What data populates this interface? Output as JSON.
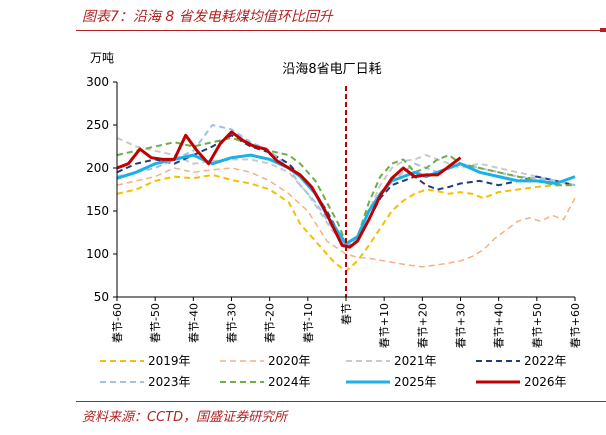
{
  "figure": {
    "title": "图表7：沿海 8 省发电耗煤均值环比回升",
    "source": "资料来源：CCTD，国盛证券研究所"
  },
  "chart_data": {
    "type": "line",
    "title": "沿海8省电厂日耗",
    "ylabel": "万吨",
    "xlabel": "",
    "ylim": [
      50,
      300
    ],
    "xlim": [
      -60,
      60
    ],
    "y_ticks": [
      "300",
      "250",
      "200",
      "150",
      "100",
      "50"
    ],
    "x_ticks": [
      {
        "x": -60,
        "label": "春节-60"
      },
      {
        "x": -50,
        "label": "春节-50"
      },
      {
        "x": -40,
        "label": "春节-40"
      },
      {
        "x": -30,
        "label": "春节-30"
      },
      {
        "x": -20,
        "label": "春节-20"
      },
      {
        "x": -10,
        "label": "春节-10"
      },
      {
        "x": 0,
        "label": "春节"
      },
      {
        "x": 10,
        "label": "春节+10"
      },
      {
        "x": 20,
        "label": "春节+20"
      },
      {
        "x": 30,
        "label": "春节+30"
      },
      {
        "x": 40,
        "label": "春节+40"
      },
      {
        "x": 50,
        "label": "春节+50"
      },
      {
        "x": 60,
        "label": "春节+60"
      }
    ],
    "reference_line_x": 0,
    "grid": false,
    "legend_position": "bottom",
    "series": [
      {
        "name": "2019年",
        "color": "#f5c000",
        "dash": "dashed",
        "width": 2,
        "x": [
          -60,
          -55,
          -50,
          -45,
          -40,
          -35,
          -30,
          -25,
          -20,
          -15,
          -12,
          -9,
          -6,
          -3,
          0,
          3,
          6,
          9,
          12,
          15,
          18,
          21,
          24,
          27,
          30,
          33,
          36,
          40,
          45,
          50,
          55,
          60
        ],
        "y": [
          170,
          175,
          185,
          190,
          188,
          192,
          186,
          182,
          175,
          160,
          135,
          120,
          105,
          90,
          80,
          92,
          110,
          130,
          150,
          162,
          170,
          175,
          173,
          170,
          172,
          170,
          165,
          172,
          175,
          178,
          180,
          182
        ]
      },
      {
        "name": "2020年",
        "color": "#f4b183",
        "dash": "dashed",
        "width": 1.5,
        "x": [
          -60,
          -55,
          -50,
          -45,
          -40,
          -35,
          -30,
          -25,
          -20,
          -15,
          -10,
          -5,
          0,
          3,
          6,
          10,
          15,
          20,
          25,
          30,
          33,
          36,
          39,
          42,
          45,
          48,
          51,
          54,
          57,
          60
        ],
        "y": [
          180,
          185,
          190,
          200,
          195,
          198,
          200,
          195,
          185,
          170,
          150,
          115,
          100,
          96,
          95,
          92,
          88,
          85,
          88,
          92,
          97,
          105,
          118,
          128,
          138,
          142,
          138,
          145,
          140,
          165
        ]
      },
      {
        "name": "2021年",
        "color": "#c9c9c9",
        "dash": "dashed",
        "width": 2,
        "x": [
          -60,
          -55,
          -50,
          -45,
          -40,
          -35,
          -30,
          -25,
          -20,
          -15,
          -10,
          -7,
          -4,
          -2,
          0,
          3,
          6,
          9,
          12,
          15,
          18,
          21,
          24,
          27,
          30,
          35,
          40,
          45,
          50,
          55,
          60
        ],
        "y": [
          235,
          225,
          220,
          215,
          205,
          208,
          210,
          210,
          205,
          195,
          170,
          150,
          130,
          118,
          110,
          118,
          150,
          180,
          200,
          208,
          210,
          215,
          210,
          205,
          200,
          205,
          200,
          195,
          190,
          185,
          180
        ]
      },
      {
        "name": "2022年",
        "color": "#1f3d7a",
        "dash": "dashed",
        "width": 2,
        "x": [
          -60,
          -55,
          -50,
          -45,
          -40,
          -35,
          -30,
          -25,
          -20,
          -15,
          -12,
          -8,
          -5,
          -2,
          0,
          3,
          6,
          9,
          12,
          15,
          18,
          21,
          24,
          27,
          30,
          35,
          40,
          45,
          50,
          55,
          60
        ],
        "y": [
          195,
          205,
          210,
          205,
          215,
          225,
          238,
          225,
          218,
          205,
          190,
          170,
          150,
          125,
          108,
          115,
          140,
          165,
          180,
          185,
          190,
          180,
          175,
          178,
          182,
          185,
          180,
          185,
          190,
          185,
          180
        ]
      },
      {
        "name": "2023年",
        "color": "#9dc3e6",
        "dash": "dashed",
        "width": 2,
        "x": [
          -60,
          -55,
          -50,
          -45,
          -40,
          -35,
          -30,
          -25,
          -20,
          -15,
          -12,
          -8,
          -5,
          -2,
          0,
          3,
          6,
          9,
          12,
          15,
          18,
          21,
          24,
          27,
          30,
          35,
          40,
          45,
          50,
          55,
          60
        ],
        "y": [
          190,
          195,
          200,
          210,
          220,
          250,
          245,
          230,
          220,
          200,
          180,
          160,
          140,
          120,
          108,
          120,
          150,
          170,
          185,
          195,
          205,
          200,
          195,
          200,
          205,
          200,
          195,
          190,
          188,
          185,
          180
        ]
      },
      {
        "name": "2024年",
        "color": "#70ad47",
        "dash": "dashed",
        "width": 2,
        "x": [
          -60,
          -55,
          -50,
          -45,
          -40,
          -35,
          -30,
          -25,
          -20,
          -15,
          -12,
          -8,
          -5,
          -2,
          0,
          3,
          6,
          9,
          12,
          15,
          18,
          21,
          24,
          27,
          30,
          35,
          40,
          45,
          50,
          55,
          60
        ],
        "y": [
          215,
          220,
          225,
          230,
          225,
          230,
          235,
          228,
          220,
          215,
          205,
          185,
          160,
          135,
          112,
          120,
          160,
          190,
          205,
          210,
          195,
          200,
          210,
          215,
          205,
          200,
          195,
          190,
          185,
          180,
          180
        ]
      },
      {
        "name": "2025年",
        "color": "#1cb0e8",
        "dash": "solid",
        "width": 3,
        "x": [
          -60,
          -55,
          -50,
          -45,
          -40,
          -35,
          -30,
          -25,
          -20,
          -15,
          -12,
          -8,
          -5,
          -2,
          0,
          3,
          6,
          9,
          12,
          15,
          18,
          21,
          24,
          27,
          30,
          35,
          40,
          45,
          50,
          55,
          60
        ],
        "y": [
          188,
          195,
          205,
          210,
          215,
          205,
          212,
          215,
          210,
          200,
          190,
          170,
          145,
          125,
          112,
          120,
          150,
          170,
          185,
          190,
          195,
          190,
          195,
          200,
          205,
          195,
          190,
          185,
          185,
          182,
          190
        ]
      },
      {
        "name": "2026年",
        "color": "#c00000",
        "dash": "solid",
        "width": 3,
        "x": [
          -60,
          -57,
          -54,
          -51,
          -48,
          -45,
          -42,
          -39,
          -36,
          -33,
          -30,
          -27,
          -24,
          -21,
          -18,
          -15,
          -12,
          -9,
          -6,
          -3,
          -1,
          1,
          3,
          6,
          9,
          12,
          15,
          18,
          21,
          24,
          27,
          30
        ],
        "y": [
          200,
          205,
          222,
          212,
          210,
          210,
          238,
          220,
          205,
          228,
          242,
          232,
          225,
          222,
          208,
          200,
          192,
          178,
          155,
          128,
          110,
          108,
          115,
          140,
          168,
          188,
          200,
          190,
          192,
          192,
          202,
          212
        ]
      }
    ]
  }
}
